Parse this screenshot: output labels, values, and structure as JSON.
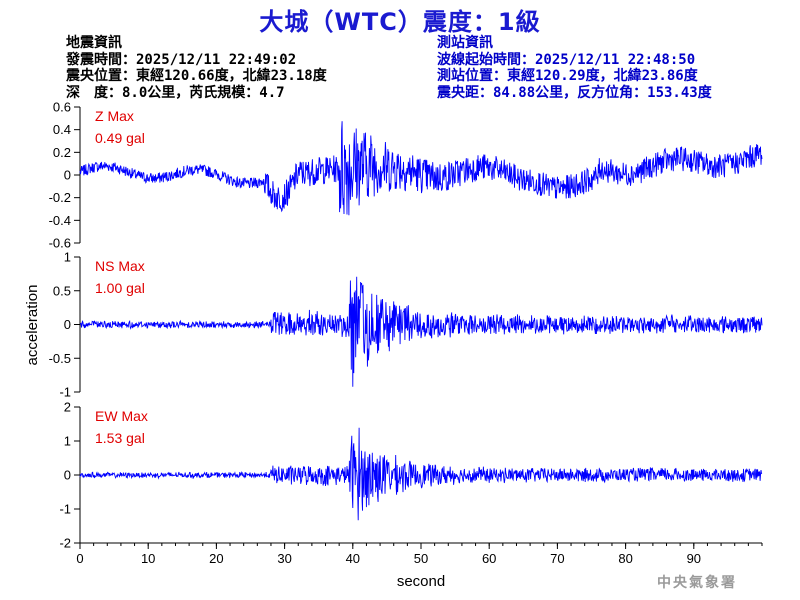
{
  "title": "大城（WTC）震度：1級",
  "event_info": {
    "heading": "地震資訊",
    "origin_time": "發震時間：2025/12/11 22:49:02",
    "epicenter": "震央位置：東經120.66度，北緯23.18度",
    "depth_magnitude": "深　度：8.0公里，芮氏規模：4.7"
  },
  "station_info": {
    "heading": "測站資訊",
    "wave_start": "波線起始時間：2025/12/11 22:48:50",
    "station_location": "測站位置：東經120.29度，北緯23.86度",
    "distance_azimuth": "震央距：84.88公里，反方位角：153.43度"
  },
  "agency": "中央氣象署",
  "colors": {
    "title": "#1a1ad0",
    "trace": "#0000ff",
    "max_label": "#e00000",
    "station_info": "#0000c8"
  },
  "chart_data": [
    {
      "type": "line",
      "component": "Z",
      "max_label": "Z Max",
      "max_value": "0.49 gal",
      "ylim": [
        -0.6,
        0.6
      ],
      "yticks": [
        "0.6",
        "0.4",
        "0.2",
        "0",
        "-0.2",
        "-0.4",
        "-0.6"
      ],
      "ytick_values": [
        0.6,
        0.4,
        0.2,
        0,
        -0.2,
        -0.4,
        -0.6
      ],
      "peak_abs": 0.49
    },
    {
      "type": "line",
      "component": "NS",
      "max_label": "NS Max",
      "max_value": "1.00 gal",
      "ylim": [
        -1,
        1
      ],
      "yticks": [
        "1",
        "0.5",
        "0",
        "-0.5",
        "-1"
      ],
      "ytick_values": [
        1,
        0.5,
        0,
        -0.5,
        -1
      ],
      "peak_abs": 1.0
    },
    {
      "type": "line",
      "component": "EW",
      "max_label": "EW Max",
      "max_value": "1.53 gal",
      "ylim": [
        -2,
        2
      ],
      "yticks": [
        "2",
        "1",
        "0",
        "-1",
        "-2"
      ],
      "ytick_values": [
        2,
        1,
        0,
        -1,
        -2
      ],
      "peak_abs": 1.53
    }
  ],
  "axes": {
    "xlabel": "second",
    "ylabel": "acceleration",
    "xlim": [
      0,
      100
    ],
    "xticks": [
      "0",
      "10",
      "20",
      "30",
      "40",
      "50",
      "60",
      "70",
      "80",
      "90"
    ],
    "xtick_values": [
      0,
      10,
      20,
      30,
      40,
      50,
      60,
      70,
      80,
      90
    ]
  }
}
